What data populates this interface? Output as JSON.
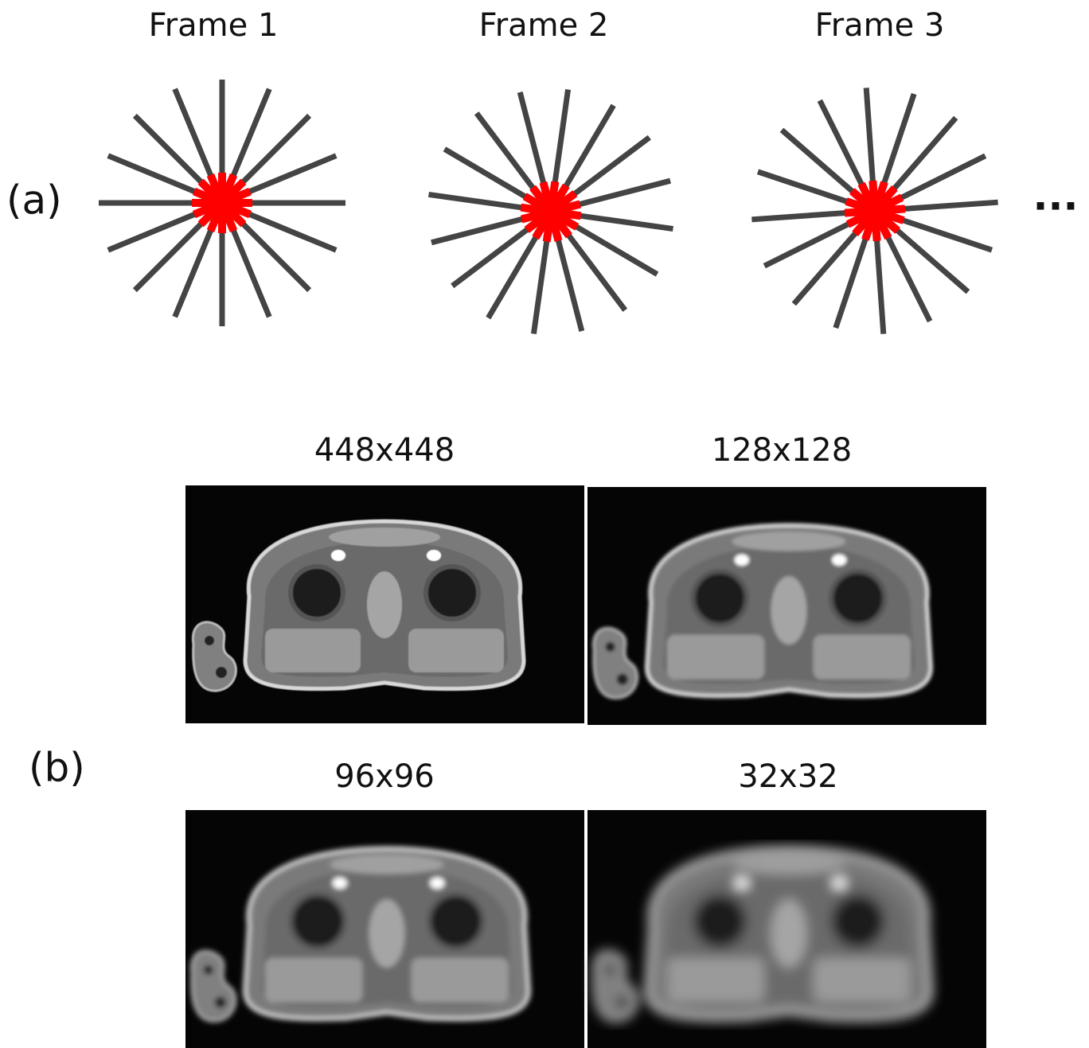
{
  "panel_a": {
    "label": "(a)",
    "frames": [
      "Frame 1",
      "Frame 2",
      "Frame 3"
    ],
    "ellipsis": "..."
  },
  "panel_b": {
    "label": "(b)",
    "images": [
      "448x448",
      "128x128",
      "96x96",
      "32x32"
    ]
  }
}
